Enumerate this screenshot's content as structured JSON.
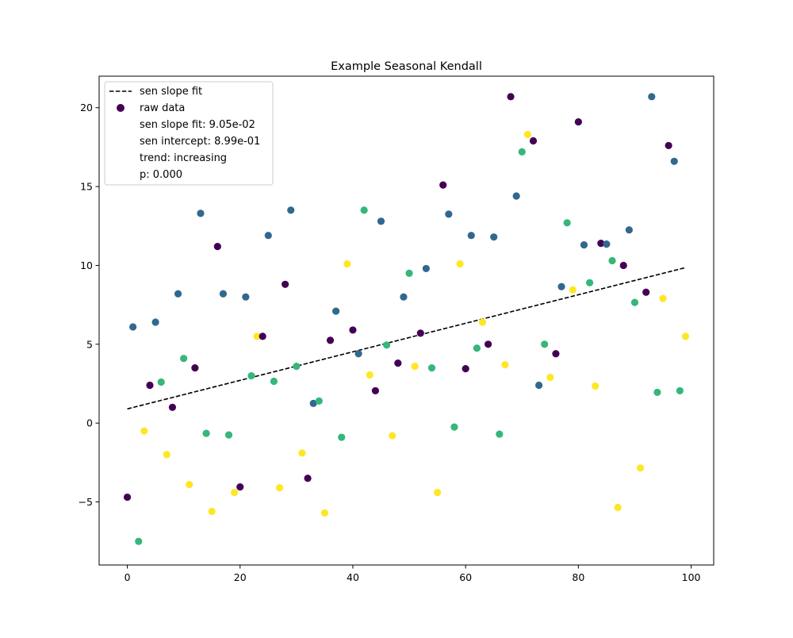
{
  "chart_data": {
    "type": "scatter",
    "title": "Example Seasonal Kendall",
    "xlabel": "",
    "ylabel": "",
    "xlim": [
      -5,
      104
    ],
    "ylim": [
      -9,
      22
    ],
    "xticks": [
      0,
      20,
      40,
      60,
      80,
      100
    ],
    "yticks": [
      -5,
      0,
      5,
      10,
      15,
      20
    ],
    "ytick_labels": [
      "−5",
      "0",
      "5",
      "10",
      "15",
      "20"
    ],
    "grid": false,
    "legend": {
      "position": "top-left",
      "entries": [
        "sen slope fit",
        "raw data",
        "sen slope fit: 9.05e-02",
        "sen intercept: 8.99e-01",
        "trend: increasing",
        "p: 0.000"
      ]
    },
    "fit_line": {
      "slope": 0.0905,
      "intercept": 0.899,
      "x": [
        0,
        99
      ],
      "color": "#000000",
      "style": "dashed"
    },
    "season_colors": [
      "#440154",
      "#31688e",
      "#35b779",
      "#fde725"
    ],
    "points": [
      [
        0,
        -4.7
      ],
      [
        1,
        6.1
      ],
      [
        2,
        -7.5
      ],
      [
        3,
        -0.5
      ],
      [
        4,
        2.4
      ],
      [
        5,
        6.4
      ],
      [
        6,
        2.6
      ],
      [
        7,
        -2.0
      ],
      [
        8,
        1.0
      ],
      [
        9,
        8.2
      ],
      [
        10,
        4.1
      ],
      [
        11,
        -3.9
      ],
      [
        12,
        3.5
      ],
      [
        13,
        13.3
      ],
      [
        14,
        -0.65
      ],
      [
        15,
        -5.6
      ],
      [
        16,
        11.2
      ],
      [
        17,
        8.2
      ],
      [
        18,
        -0.75
      ],
      [
        19,
        -4.4
      ],
      [
        20,
        -4.05
      ],
      [
        21,
        8.0
      ],
      [
        22,
        3.0
      ],
      [
        23,
        5.5
      ],
      [
        24,
        5.5
      ],
      [
        25,
        11.9
      ],
      [
        26,
        2.65
      ],
      [
        27,
        -4.1
      ],
      [
        28,
        8.8
      ],
      [
        29,
        13.5
      ],
      [
        30,
        3.6
      ],
      [
        31,
        -1.9
      ],
      [
        32,
        -3.5
      ],
      [
        33,
        1.25
      ],
      [
        34,
        1.4
      ],
      [
        35,
        -5.7
      ],
      [
        36,
        5.25
      ],
      [
        37,
        7.1
      ],
      [
        38,
        -0.9
      ],
      [
        39,
        10.1
      ],
      [
        40,
        5.9
      ],
      [
        41,
        4.4
      ],
      [
        42,
        13.5
      ],
      [
        43,
        3.05
      ],
      [
        44,
        2.05
      ],
      [
        45,
        12.8
      ],
      [
        46,
        4.95
      ],
      [
        47,
        -0.8
      ],
      [
        48,
        3.8
      ],
      [
        49,
        8.0
      ],
      [
        50,
        9.5
      ],
      [
        51,
        3.6
      ],
      [
        52,
        5.7
      ],
      [
        53,
        9.8
      ],
      [
        54,
        3.5
      ],
      [
        55,
        -4.4
      ],
      [
        56,
        15.1
      ],
      [
        57,
        13.25
      ],
      [
        58,
        -0.25
      ],
      [
        59,
        10.1
      ],
      [
        60,
        3.45
      ],
      [
        61,
        11.9
      ],
      [
        62,
        4.75
      ],
      [
        63,
        6.4
      ],
      [
        64,
        5.0
      ],
      [
        65,
        11.8
      ],
      [
        66,
        -0.7
      ],
      [
        67,
        3.7
      ],
      [
        68,
        20.7
      ],
      [
        69,
        14.4
      ],
      [
        70,
        17.2
      ],
      [
        71,
        18.3
      ],
      [
        72,
        17.9
      ],
      [
        73,
        2.4
      ],
      [
        74,
        5.0
      ],
      [
        75,
        2.9
      ],
      [
        76,
        4.4
      ],
      [
        77,
        8.65
      ],
      [
        78,
        12.7
      ],
      [
        79,
        8.45
      ],
      [
        80,
        19.1
      ],
      [
        81,
        11.3
      ],
      [
        82,
        8.9
      ],
      [
        83,
        2.35
      ],
      [
        84,
        11.4
      ],
      [
        85,
        11.35
      ],
      [
        86,
        10.3
      ],
      [
        87,
        -5.35
      ],
      [
        88,
        10.0
      ],
      [
        89,
        12.25
      ],
      [
        90,
        7.65
      ],
      [
        91,
        -2.85
      ],
      [
        92,
        8.3
      ],
      [
        93,
        20.7
      ],
      [
        94,
        1.95
      ],
      [
        95,
        7.9
      ],
      [
        96,
        17.6
      ],
      [
        97,
        16.6
      ],
      [
        98,
        2.05
      ],
      [
        99,
        5.5
      ]
    ]
  }
}
